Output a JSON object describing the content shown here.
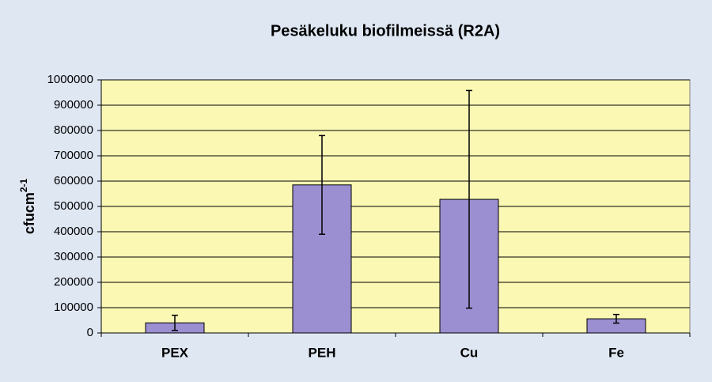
{
  "chart_data": {
    "type": "bar",
    "title": "Pesäkeluku biofilmeissä (R2A)",
    "y_label": "cfucm",
    "y_label_sup": "2-1",
    "categories": [
      "PEX",
      "PEH",
      "Cu",
      "Fe"
    ],
    "values": [
      40000,
      585000,
      528000,
      56000
    ],
    "errors": [
      30000,
      195000,
      430000,
      17000
    ],
    "color": "#9b8fd1",
    "ylim": [
      0,
      1000000
    ],
    "yticks": [
      0,
      100000,
      200000,
      300000,
      400000,
      500000,
      600000,
      700000,
      800000,
      900000,
      1000000
    ],
    "grid": true
  }
}
